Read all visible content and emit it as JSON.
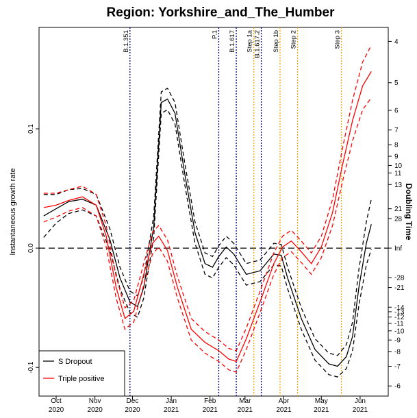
{
  "chart_data": {
    "type": "line",
    "title": "Region: Yorkshire_and_The_Humber",
    "ylabel": "Instantaneous growth rate",
    "y2label": "Doubling Time",
    "xlim": [
      -13.7,
      265.5
    ],
    "xticks": [
      {
        "value": 0,
        "label": "Oct\n2020"
      },
      {
        "value": 31,
        "label": "Nov\n2020"
      },
      {
        "value": 61,
        "label": "Dec\n2020"
      },
      {
        "value": 92,
        "label": "Jan\n2021"
      },
      {
        "value": 123,
        "label": "Feb\n2021"
      },
      {
        "value": 151,
        "label": "Mar\n2021"
      },
      {
        "value": 182,
        "label": "Apr\n2021"
      },
      {
        "value": 212,
        "label": "May\n2021"
      },
      {
        "value": 243,
        "label": "Jun\n2021"
      }
    ],
    "ylim": [
      -0.124,
      0.185
    ],
    "yticks": [
      -0.1,
      {
        "value": 0,
        "label": "0.0"
      },
      0.1
    ],
    "y2scale": "doubling",
    "y2ticks": [
      4,
      5,
      6,
      7,
      8,
      9,
      10,
      11,
      13,
      21,
      28,
      {
        "value": null,
        "label": "Inf"
      },
      -28,
      -21,
      -14,
      -13,
      -12,
      -11,
      -10,
      -9,
      -8,
      -7,
      -6
    ],
    "reference_line": 0,
    "legend": "bottom-left",
    "vlines": [
      {
        "label": "B.1.351",
        "x": 59,
        "color": "#00008b"
      },
      {
        "label": "P.1",
        "x": 130,
        "color": "#00008b"
      },
      {
        "label": "B.1.617",
        "x": 144,
        "color": "#00008b"
      },
      {
        "label": "Step 1a",
        "x": 158,
        "color": "#ffa500"
      },
      {
        "label": "B.1.617.2",
        "x": 164,
        "color": "#00008b"
      },
      {
        "label": "Step 1b",
        "x": 179,
        "color": "#ffa500"
      },
      {
        "label": "Step 2",
        "x": 193,
        "color": "#ffa500"
      },
      {
        "label": "Step 3",
        "x": 228,
        "color": "#ffa500"
      }
    ],
    "series": [
      {
        "name": "S Dropout",
        "color": "#000000",
        "x": [
          -10,
          0,
          10,
          21,
          32,
          43,
          51,
          59,
          65,
          70,
          78,
          84,
          89,
          95,
          103,
          111,
          119,
          125,
          130,
          136,
          142,
          152,
          163,
          174,
          180,
          185,
          196,
          207,
          218,
          225,
          232,
          237,
          242,
          248,
          252
        ],
        "values": [
          0.027,
          0.033,
          0.039,
          0.041,
          0.036,
          0.007,
          -0.025,
          -0.045,
          -0.049,
          -0.033,
          0.018,
          0.122,
          0.125,
          0.113,
          0.061,
          0.013,
          -0.013,
          -0.016,
          -0.007,
          0.001,
          -0.005,
          -0.022,
          -0.019,
          -0.005,
          -0.006,
          -0.025,
          -0.059,
          -0.085,
          -0.097,
          -0.099,
          -0.091,
          -0.074,
          -0.033,
          0.004,
          0.02
        ],
        "upper": [
          0.045,
          0.045,
          0.049,
          0.05,
          0.045,
          0.016,
          -0.016,
          -0.036,
          -0.04,
          -0.024,
          0.027,
          0.131,
          0.134,
          0.122,
          0.07,
          0.022,
          -0.004,
          -0.007,
          0.002,
          0.01,
          0.004,
          -0.013,
          -0.01,
          0.004,
          0.003,
          -0.016,
          -0.05,
          -0.076,
          -0.088,
          -0.09,
          -0.081,
          -0.062,
          -0.018,
          0.022,
          0.041
        ],
        "lower": [
          0.009,
          0.021,
          0.029,
          0.032,
          0.027,
          -0.002,
          -0.034,
          -0.054,
          -0.058,
          -0.042,
          0.009,
          0.113,
          0.116,
          0.104,
          0.052,
          0.004,
          -0.022,
          -0.025,
          -0.016,
          -0.008,
          -0.014,
          -0.031,
          -0.028,
          -0.014,
          -0.015,
          -0.034,
          -0.068,
          -0.094,
          -0.106,
          -0.108,
          -0.101,
          -0.086,
          -0.048,
          -0.014,
          -0.001
        ]
      },
      {
        "name": "Triple positive",
        "color": "#ff0000",
        "x": [
          -10,
          0,
          10,
          21,
          32,
          40,
          48,
          55,
          62,
          70,
          77,
          82,
          89,
          97,
          108,
          119,
          130,
          138,
          144,
          152,
          163,
          174,
          181,
          188,
          196,
          204,
          212,
          221,
          229,
          237,
          245,
          252
        ],
        "values": [
          0.034,
          0.036,
          0.04,
          0.043,
          0.036,
          0.01,
          -0.033,
          -0.059,
          -0.053,
          -0.022,
          0.004,
          0.01,
          -0.002,
          -0.033,
          -0.068,
          -0.079,
          -0.086,
          -0.093,
          -0.095,
          -0.076,
          -0.045,
          -0.013,
          0.001,
          0.006,
          -0.003,
          -0.013,
          0.001,
          0.03,
          0.07,
          0.107,
          0.136,
          0.148
        ],
        "upper": [
          0.046,
          0.046,
          0.049,
          0.052,
          0.045,
          0.019,
          -0.024,
          -0.05,
          -0.044,
          -0.013,
          0.013,
          0.019,
          0.007,
          -0.024,
          -0.059,
          -0.07,
          -0.077,
          -0.084,
          -0.086,
          -0.067,
          -0.036,
          -0.004,
          0.01,
          0.015,
          0.006,
          -0.004,
          0.01,
          0.041,
          0.084,
          0.124,
          0.156,
          0.17
        ],
        "lower": [
          0.022,
          0.026,
          0.031,
          0.034,
          0.027,
          0.001,
          -0.042,
          -0.068,
          -0.062,
          -0.031,
          -0.005,
          0.001,
          -0.011,
          -0.042,
          -0.077,
          -0.088,
          -0.095,
          -0.102,
          -0.104,
          -0.085,
          -0.054,
          -0.022,
          -0.008,
          -0.003,
          -0.012,
          -0.022,
          -0.008,
          0.019,
          0.056,
          0.09,
          0.116,
          0.126
        ]
      }
    ]
  }
}
